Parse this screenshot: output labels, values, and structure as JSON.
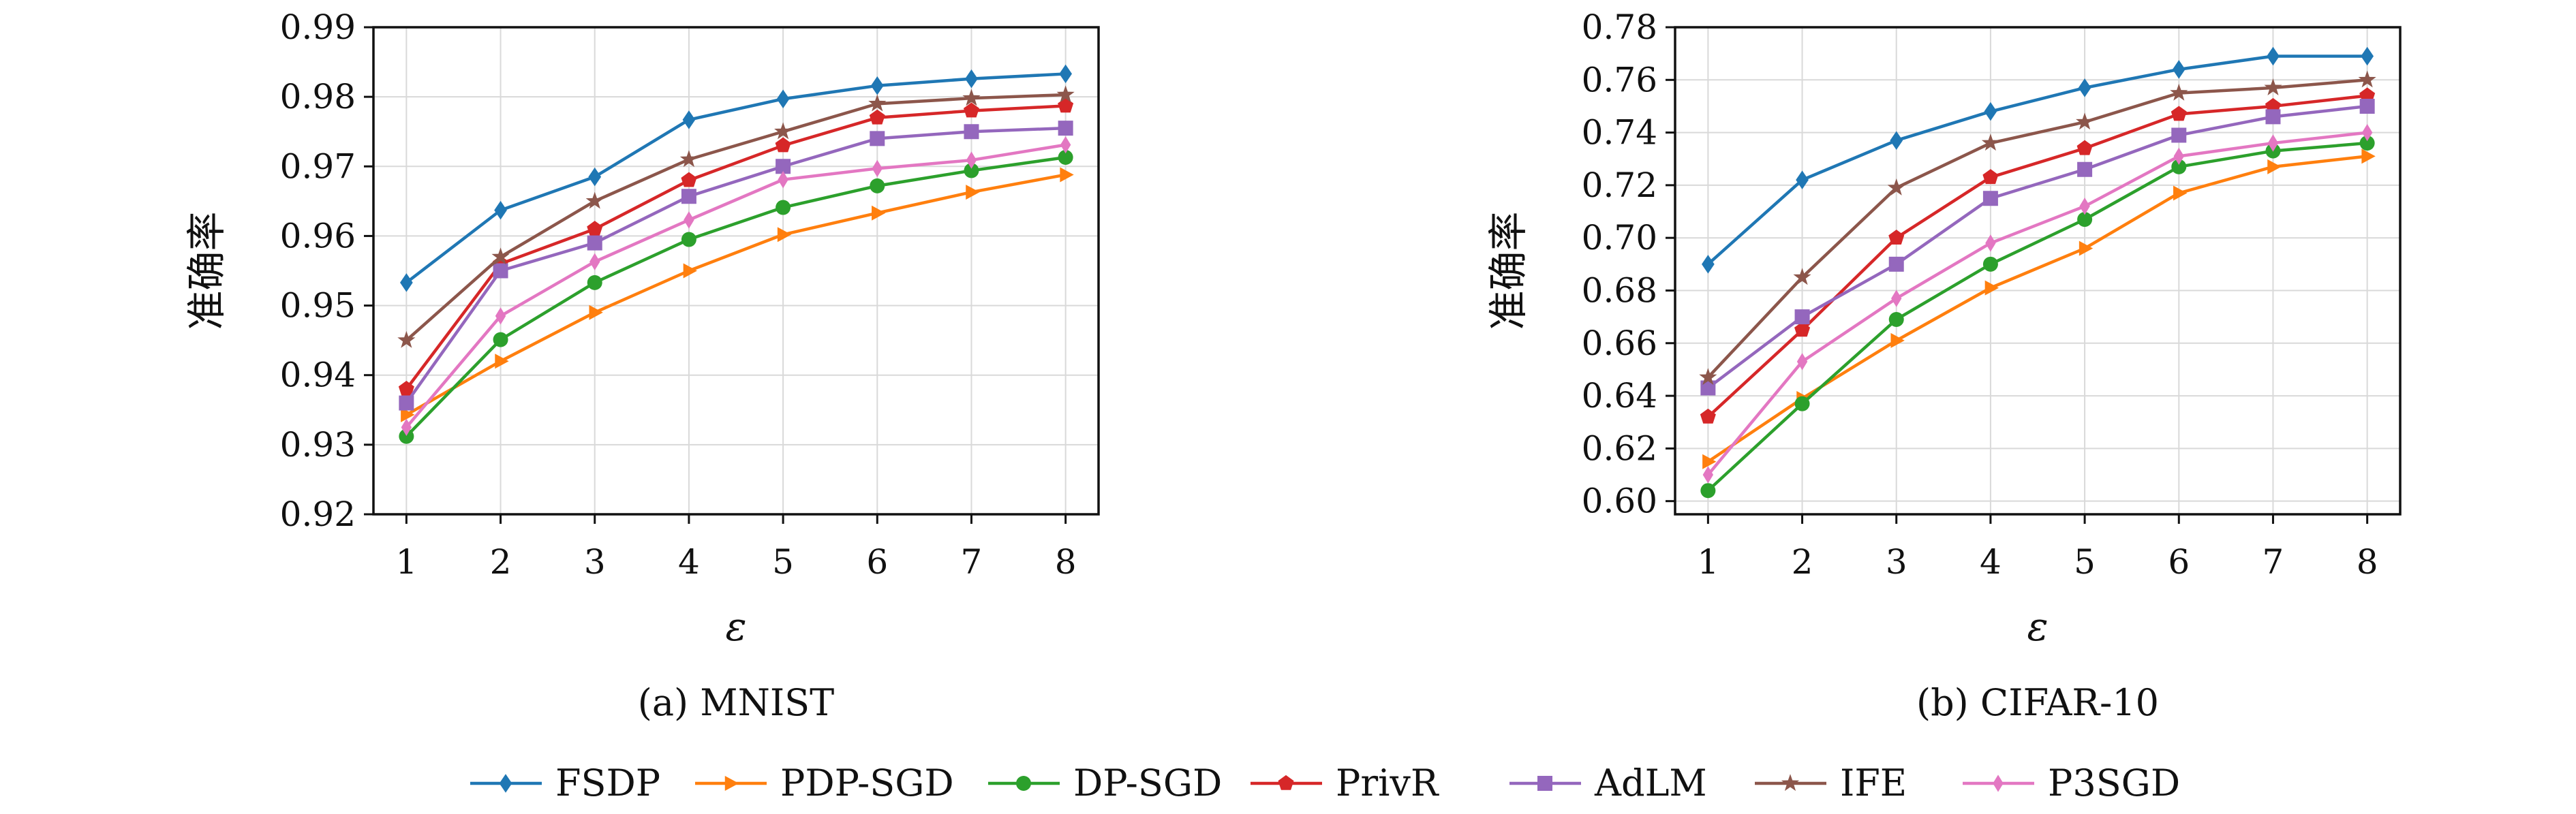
{
  "chart_data": [
    {
      "type": "line",
      "caption": "(a) MNIST",
      "xlabel": "ε",
      "ylabel": "准确率",
      "x": [
        1,
        2,
        3,
        4,
        5,
        6,
        7,
        8
      ],
      "xlim": [
        0.65,
        8.35
      ],
      "ylim": [
        0.92,
        0.99
      ],
      "yticks": [
        "0.92",
        "0.93",
        "0.94",
        "0.95",
        "0.96",
        "0.97",
        "0.98",
        "0.99"
      ],
      "grid": true,
      "series": [
        {
          "name": "FSDP",
          "values": [
            0.9533,
            0.9637,
            0.9685,
            0.9767,
            0.9797,
            0.9816,
            0.9826,
            0.9833
          ]
        },
        {
          "name": "PDP-SGD",
          "values": [
            0.9343,
            0.942,
            0.949,
            0.955,
            0.9602,
            0.9633,
            0.9663,
            0.9688
          ]
        },
        {
          "name": "DP-SGD",
          "values": [
            0.9312,
            0.9451,
            0.9533,
            0.9595,
            0.9641,
            0.9672,
            0.9694,
            0.9713
          ]
        },
        {
          "name": "PrivR",
          "values": [
            0.938,
            0.956,
            0.961,
            0.968,
            0.973,
            0.977,
            0.978,
            0.9787
          ]
        },
        {
          "name": "AdLM",
          "values": [
            0.936,
            0.955,
            0.959,
            0.9657,
            0.97,
            0.974,
            0.975,
            0.9755
          ]
        },
        {
          "name": "IFE",
          "values": [
            0.945,
            0.957,
            0.965,
            0.971,
            0.975,
            0.979,
            0.9798,
            0.9803
          ]
        },
        {
          "name": "P3SGD",
          "values": [
            0.9325,
            0.9485,
            0.9563,
            0.9623,
            0.9681,
            0.9697,
            0.9709,
            0.9731
          ]
        }
      ]
    },
    {
      "type": "line",
      "caption": "(b) CIFAR-10",
      "xlabel": "ε",
      "ylabel": "准确率",
      "x": [
        1,
        2,
        3,
        4,
        5,
        6,
        7,
        8
      ],
      "xlim": [
        0.65,
        8.35
      ],
      "ylim": [
        0.595,
        0.78
      ],
      "yticks": [
        "0.60",
        "0.62",
        "0.64",
        "0.66",
        "0.68",
        "0.70",
        "0.72",
        "0.74",
        "0.76",
        "0.78"
      ],
      "grid": true,
      "series": [
        {
          "name": "FSDP",
          "values": [
            0.69,
            0.722,
            0.737,
            0.748,
            0.757,
            0.764,
            0.769,
            0.769
          ]
        },
        {
          "name": "PDP-SGD",
          "values": [
            0.615,
            0.639,
            0.661,
            0.681,
            0.696,
            0.717,
            0.727,
            0.731
          ]
        },
        {
          "name": "DP-SGD",
          "values": [
            0.604,
            0.637,
            0.669,
            0.69,
            0.707,
            0.727,
            0.733,
            0.736
          ]
        },
        {
          "name": "PrivR",
          "values": [
            0.632,
            0.665,
            0.7,
            0.723,
            0.734,
            0.747,
            0.75,
            0.754
          ]
        },
        {
          "name": "AdLM",
          "values": [
            0.643,
            0.67,
            0.69,
            0.715,
            0.726,
            0.739,
            0.746,
            0.75
          ]
        },
        {
          "name": "IFE",
          "values": [
            0.647,
            0.685,
            0.719,
            0.736,
            0.744,
            0.755,
            0.757,
            0.76
          ]
        },
        {
          "name": "P3SGD",
          "values": [
            0.61,
            0.653,
            0.677,
            0.698,
            0.712,
            0.731,
            0.736,
            0.74
          ]
        }
      ]
    }
  ],
  "legend": {
    "placement": "bottom",
    "items": [
      {
        "name": "FSDP",
        "color": "#1f77b4",
        "marker": "diamond"
      },
      {
        "name": "PDP-SGD",
        "color": "#ff7f0e",
        "marker": "triangle-right"
      },
      {
        "name": "DP-SGD",
        "color": "#2ca02c",
        "marker": "circle"
      },
      {
        "name": "PrivR",
        "color": "#d62728",
        "marker": "pentagon"
      },
      {
        "name": "AdLM",
        "color": "#9467bd",
        "marker": "square"
      },
      {
        "name": "IFE",
        "color": "#8c564b",
        "marker": "star"
      },
      {
        "name": "P3SGD",
        "color": "#e377c2",
        "marker": "thin-diamond"
      }
    ]
  }
}
